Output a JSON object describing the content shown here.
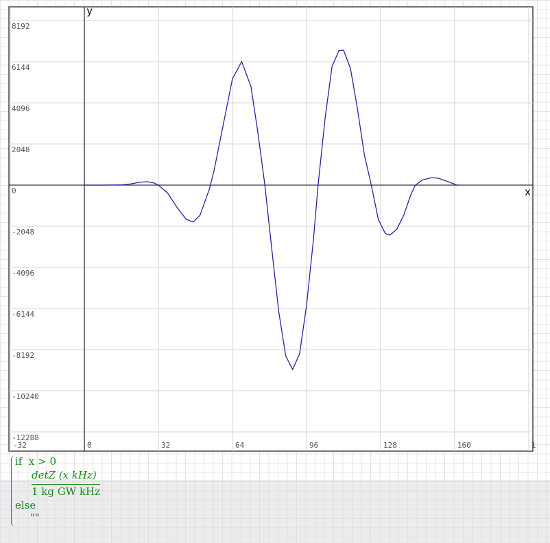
{
  "chart_data": {
    "type": "line",
    "x_label": "x",
    "y_label": "y",
    "x": [
      0,
      8,
      16,
      20,
      24,
      27,
      30,
      32,
      36,
      40,
      44,
      47,
      50,
      54,
      56,
      60,
      64,
      68,
      72,
      75,
      78,
      81,
      84,
      87,
      90,
      93,
      96,
      99,
      101,
      104,
      107,
      110,
      112,
      115,
      118,
      121,
      124,
      127,
      130,
      132,
      135,
      138,
      141,
      143,
      146,
      150,
      153,
      157,
      161,
      162
    ],
    "series": [
      {
        "color": "#2323a8",
        "values": [
          0,
          0,
          10,
          60,
          140,
          170,
          110,
          0,
          -400,
          -1100,
          -1700,
          -1840,
          -1500,
          -200,
          700,
          3000,
          5300,
          6150,
          4900,
          2600,
          0,
          -3200,
          -6300,
          -8500,
          -9180,
          -8400,
          -6000,
          -2700,
          0,
          3300,
          5900,
          6700,
          6720,
          5800,
          3800,
          1500,
          0,
          -1700,
          -2400,
          -2490,
          -2200,
          -1500,
          -500,
          0,
          250,
          375,
          340,
          180,
          0,
          0
        ]
      }
    ],
    "xlim": [
      -32.6,
      193.8
    ],
    "ylim": [
      -13244,
      8875
    ],
    "xticks": [
      -32,
      0,
      32,
      64,
      96,
      128,
      160,
      {
        "value": 192,
        "label": "1"
      }
    ],
    "yticks": [
      -12288,
      -10240,
      -8192,
      -6144,
      -4096,
      -2048,
      0,
      2048,
      4096,
      6144,
      8192
    ],
    "grid": true
  },
  "formula": {
    "condition": "if  x > 0",
    "numerator": "detZ (x kHz)",
    "denominator": "1 kg GW kHz",
    "else": "else",
    "otherwise": "\"\""
  }
}
